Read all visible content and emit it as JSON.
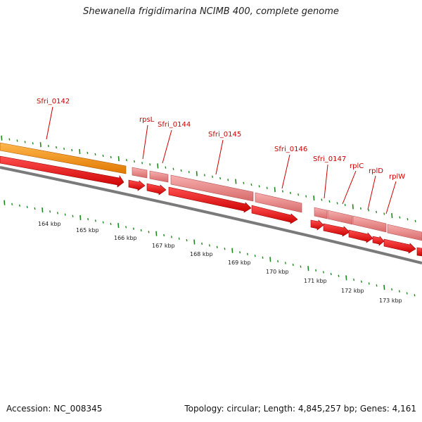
{
  "title": "Shewanella frigidimarina NCIMB 400, complete genome",
  "footer": {
    "accession": "Accession: NC_008345",
    "stats": "Topology: circular; Length: 4,845,257 bp; Genes: 4,161"
  },
  "colors": {
    "label_red": "#cc0000",
    "gene_red": "#ee0000",
    "gene_pink": "#ee8080",
    "gene_orange": "#ff9900",
    "tick_green": "#1e8a1e",
    "backbone_grey": "#808080"
  },
  "genes": [
    {
      "label": "Sfri_0142"
    },
    {
      "label": "rpsL"
    },
    {
      "label": "Sfri_0144"
    },
    {
      "label": "Sfri_0145"
    },
    {
      "label": "Sfri_0146"
    },
    {
      "label": "Sfri_0147"
    },
    {
      "label": "rplC"
    },
    {
      "label": "rplD"
    },
    {
      "label": "rplW"
    }
  ],
  "kbp_labels": [
    "164 kbp",
    "165 kbp",
    "166 kbp",
    "167 kbp",
    "168 kbp",
    "169 kbp",
    "170 kbp",
    "171 kbp",
    "172 kbp",
    "173 kbp"
  ]
}
